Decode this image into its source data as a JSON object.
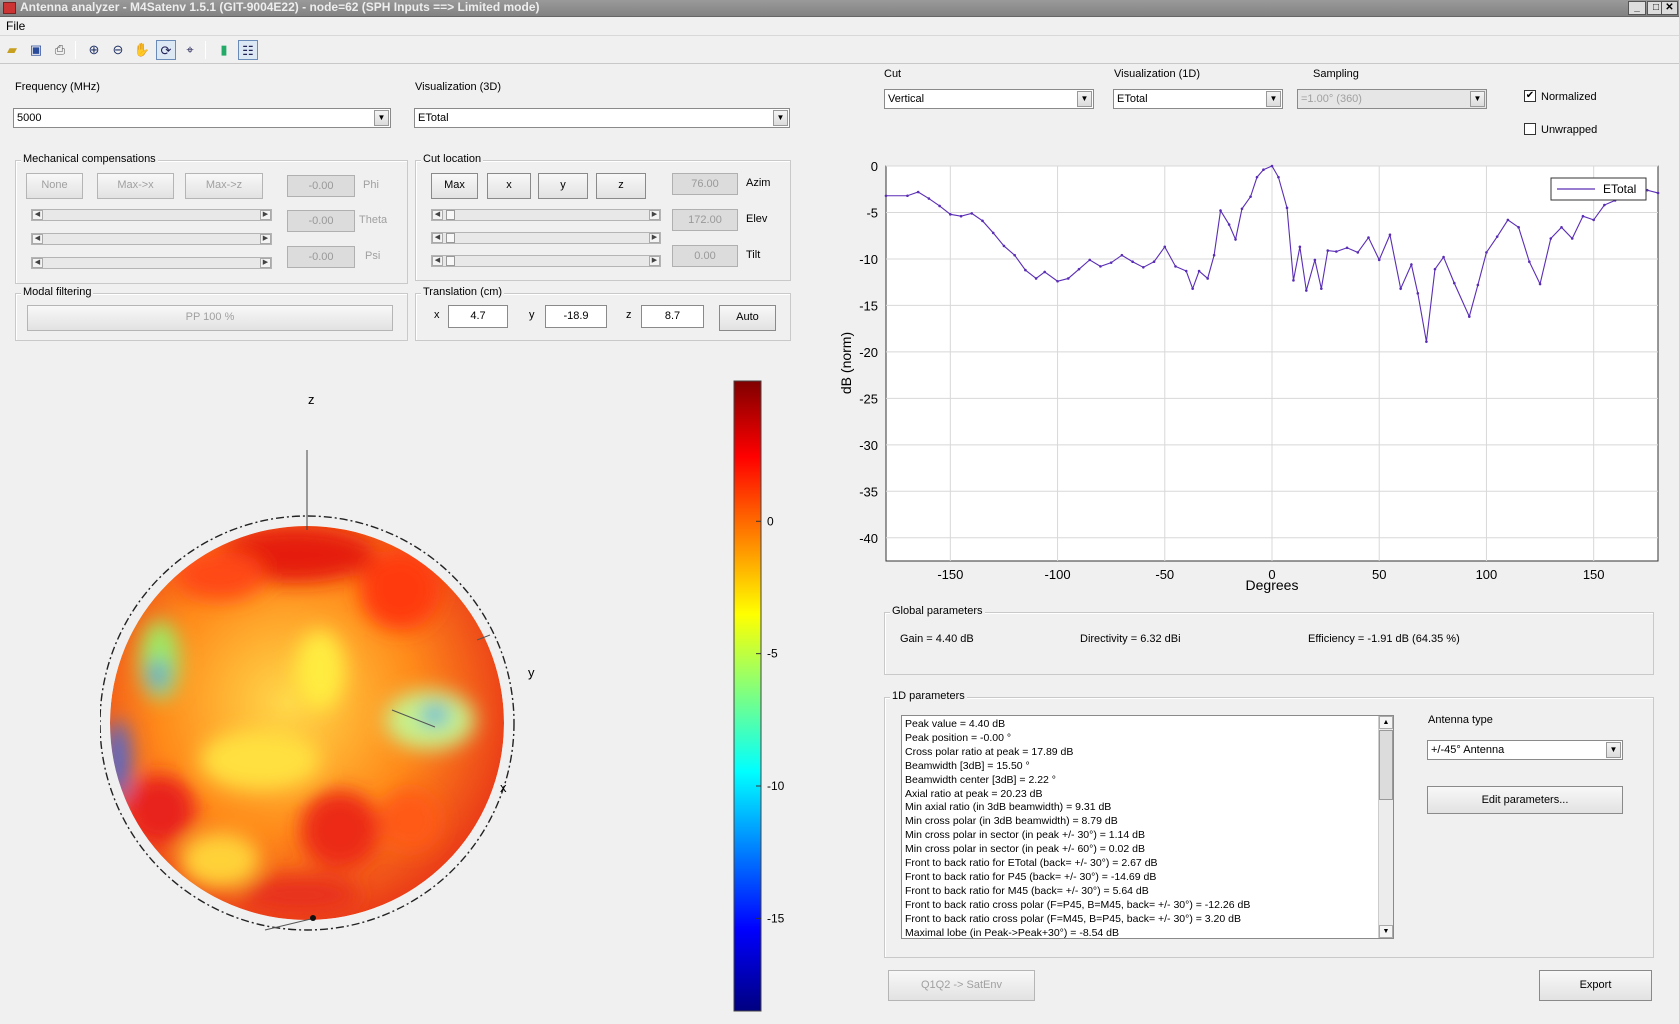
{
  "window": {
    "title": "Antenna analyzer - M4Satenv 1.5.1 (GIT-9004E22) - node=62 (SPH Inputs ==> Limited mode)"
  },
  "menu": [
    "File"
  ],
  "toolbar": {
    "icons": [
      "open-file-icon",
      "save-icon",
      "print-icon",
      "zoom-in-icon",
      "zoom-out-icon",
      "pan-hand-icon",
      "rotate-3d-icon",
      "data-cursor-icon",
      "colorbar-icon",
      "legend-icon"
    ]
  },
  "frequency": {
    "label": "Frequency (MHz)",
    "value": "5000"
  },
  "visualization3d": {
    "label": "Visualization (3D)",
    "value": "ETotal"
  },
  "mechanical": {
    "title": "Mechanical compensations",
    "buttons": [
      "None",
      "Max->x",
      "Max->z"
    ],
    "values": [
      "-0.00",
      "-0.00",
      "-0.00"
    ],
    "labels": [
      "Phi",
      "Theta",
      "Psi"
    ]
  },
  "cut_location": {
    "title": "Cut location",
    "buttons": [
      "Max",
      "x",
      "y",
      "z"
    ],
    "values": [
      "76.00",
      "172.00",
      "0.00"
    ],
    "labels": [
      "Azim",
      "Elev",
      "Tilt"
    ]
  },
  "modal": {
    "title": "Modal filtering",
    "button": "PP 100 %"
  },
  "translation": {
    "title": "Translation (cm)",
    "x_label": "x",
    "x_value": "4.7",
    "y_label": "y",
    "y_value": "-18.9",
    "z_label": "z",
    "z_value": "8.7",
    "auto": "Auto"
  },
  "plot3d": {
    "axis_labels": {
      "z": "z",
      "y": "y",
      "x": "x"
    },
    "colorbar_ticks": [
      0,
      -5,
      -10,
      -15
    ],
    "colorbar_range": [
      -18.5,
      5.3
    ]
  },
  "cut": {
    "label": "Cut",
    "value": "Vertical"
  },
  "visualization1d": {
    "label": "Visualization (1D)",
    "value": "ETotal"
  },
  "sampling": {
    "label": "Sampling",
    "value": "=1.00° (360)"
  },
  "normalized": {
    "label": "Normalized",
    "checked": true
  },
  "unwrapped": {
    "label": "Unwrapped",
    "checked": false
  },
  "chart_data": {
    "type": "line",
    "xlabel": "Degrees",
    "ylabel": "dB (norm)",
    "xlim": [
      -180,
      180
    ],
    "ylim": [
      -42.5,
      0
    ],
    "xticks": [
      -150,
      -100,
      -50,
      0,
      50,
      100,
      150
    ],
    "yticks": [
      0,
      -5,
      -10,
      -15,
      -20,
      -25,
      -30,
      -35,
      -40
    ],
    "grid": true,
    "legend": "top-right",
    "series": [
      {
        "name": "ETotal",
        "color": "#5a2db5",
        "x": [
          -180,
          -170,
          -165,
          -160,
          -155,
          -150,
          -145,
          -140,
          -135,
          -130,
          -125,
          -120,
          -115,
          -110,
          -106,
          -100,
          -95,
          -90,
          -85,
          -80,
          -75,
          -70,
          -65,
          -60,
          -55,
          -50,
          -45,
          -40,
          -37,
          -34,
          -30,
          -27,
          -24,
          -20,
          -17,
          -14,
          -10,
          -7,
          -4,
          0,
          3,
          7,
          10,
          13,
          16,
          20,
          23,
          26,
          30,
          35,
          40,
          45,
          50,
          55,
          60,
          65,
          68,
          72,
          76,
          80,
          85,
          92,
          96,
          100,
          105,
          110,
          115,
          120,
          125,
          130,
          135,
          140,
          145,
          150,
          155,
          160,
          165,
          170,
          175,
          180
        ],
        "y": [
          -3.2,
          -3.2,
          -2.8,
          -3.5,
          -4.3,
          -5.2,
          -5.4,
          -5.1,
          -5.9,
          -7.2,
          -8.6,
          -9.6,
          -11.2,
          -12.1,
          -11.4,
          -12.4,
          -12.1,
          -11.1,
          -10.1,
          -10.8,
          -10.4,
          -9.6,
          -10.3,
          -10.9,
          -10.3,
          -8.7,
          -10.8,
          -11.3,
          -13.2,
          -11.3,
          -12.1,
          -9.6,
          -4.8,
          -6.3,
          -7.9,
          -4.6,
          -3.3,
          -1.2,
          -0.4,
          0.0,
          -1.2,
          -4.5,
          -12.3,
          -8.7,
          -13.4,
          -10.1,
          -13.2,
          -9.1,
          -9.2,
          -8.8,
          -9.3,
          -7.7,
          -10.1,
          -7.4,
          -13.2,
          -10.6,
          -13.7,
          -18.9,
          -11.1,
          -9.8,
          -12.6,
          -16.2,
          -12.8,
          -9.3,
          -7.6,
          -5.8,
          -6.6,
          -10.3,
          -12.7,
          -7.8,
          -6.6,
          -7.8,
          -5.4,
          -5.8,
          -4.2,
          -3.7,
          -2.8,
          -2.8,
          -2.6,
          -2.9
        ]
      }
    ]
  },
  "global_params": {
    "title": "Global parameters",
    "gain": "Gain = 4.40 dB",
    "directivity": "Directivity = 6.32 dBi",
    "efficiency": "Efficiency = -1.91 dB  (64.35 %)"
  },
  "params1d": {
    "title": "1D parameters",
    "lines": [
      "Peak value = 4.40 dB",
      "Peak position = -0.00 °",
      "Cross polar ratio at peak = 17.89 dB",
      "Beamwidth [3dB] = 15.50 °",
      "Beamwidth center [3dB] = 2.22 °",
      "Axial ratio at peak = 20.23 dB",
      "Min axial ratio (in 3dB beamwidth) = 9.31 dB",
      "Min cross polar (in 3dB beamwidth) = 8.79 dB",
      "Min cross polar in sector (in peak +/- 30°) = 1.14 dB",
      "Min cross polar in sector (in peak +/- 60°) = 0.02 dB",
      "Front to back ratio for ETotal (back= +/- 30°) = 2.67 dB",
      "Front to back ratio for P45 (back= +/- 30°) = -14.69 dB",
      "Front to back ratio for M45 (back= +/- 30°) = 5.64 dB",
      "Front to back ratio cross polar (F=P45, B=M45, back= +/- 30°) = -12.26 dB",
      "Front to back ratio cross polar (F=M45, B=P45, back= +/- 30°) = 3.20 dB",
      "Maximal lobe (in Peak->Peak+30°) = -8.54 dB"
    ]
  },
  "antenna": {
    "label": "Antenna type",
    "value": "+/-45° Antenna",
    "edit": "Edit parameters..."
  },
  "buttons": {
    "q1q2": "Q1Q2 -> SatEnv",
    "export": "Export"
  }
}
